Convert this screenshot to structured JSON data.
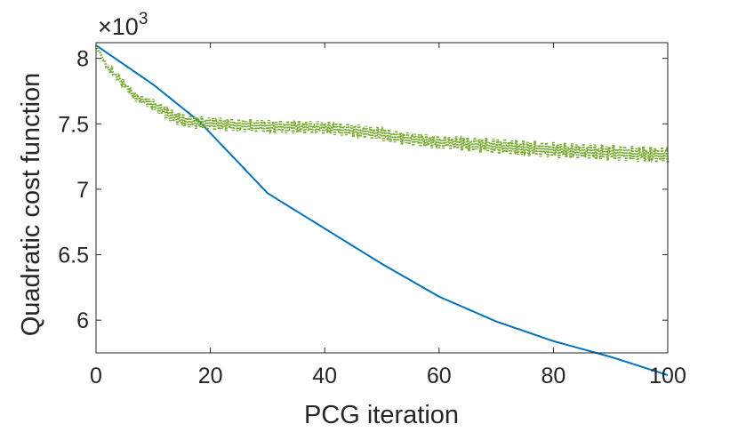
{
  "chart_data": {
    "type": "line",
    "title": "",
    "xlabel": "PCG iteration",
    "ylabel": "Quadratic cost function",
    "y_exponent_base": "×10",
    "y_exponent_power": "3",
    "xlim": [
      0,
      100
    ],
    "ylim": [
      5.75,
      8.12
    ],
    "xticks": [
      0,
      20,
      40,
      60,
      80,
      100
    ],
    "yticks": [
      6,
      6.5,
      7,
      7.5,
      8
    ],
    "xtick_labels": [
      "0",
      "20",
      "40",
      "60",
      "80",
      "100"
    ],
    "ytick_labels": [
      "6",
      "6.5",
      "7",
      "7.5",
      "8"
    ],
    "grid": false,
    "series": [
      {
        "name": "blue",
        "style": "solid",
        "color": "#0072BD",
        "x": [
          0,
          10,
          18,
          25,
          30,
          40,
          50,
          60,
          70,
          80,
          90,
          100
        ],
        "y": [
          8.1,
          7.8,
          7.52,
          7.2,
          6.97,
          6.7,
          6.43,
          6.18,
          5.99,
          5.84,
          5.72,
          5.58
        ]
      },
      {
        "name": "green",
        "style": "dotted-oscillating",
        "color": "#77AC30",
        "x": [
          0,
          2,
          5,
          7,
          10,
          13,
          16,
          20,
          30,
          40,
          45,
          50,
          55,
          60,
          70,
          80,
          90,
          100
        ],
        "y": [
          8.1,
          7.93,
          7.8,
          7.7,
          7.65,
          7.56,
          7.52,
          7.5,
          7.48,
          7.47,
          7.45,
          7.42,
          7.38,
          7.36,
          7.33,
          7.3,
          7.28,
          7.26
        ],
        "band": [
          0,
          0.02,
          0.03,
          0.03,
          0.04,
          0.05,
          0.05,
          0.05,
          0.05,
          0.05,
          0.05,
          0.05,
          0.05,
          0.05,
          0.06,
          0.06,
          0.06,
          0.06
        ]
      }
    ]
  }
}
